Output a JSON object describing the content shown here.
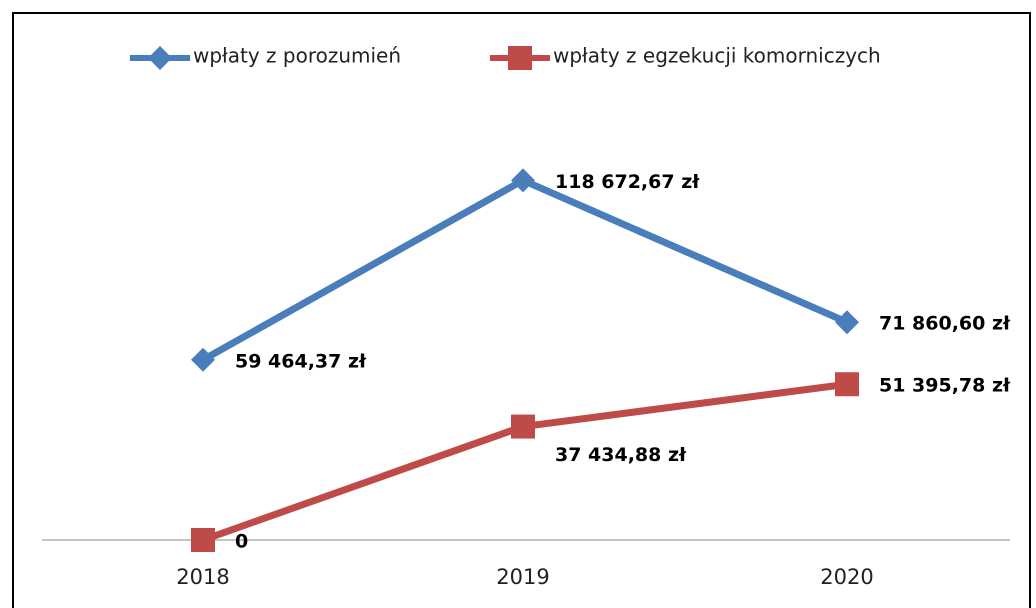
{
  "chart_data": {
    "type": "line",
    "categories": [
      "2018",
      "2019",
      "2020"
    ],
    "series": [
      {
        "name": "wpłaty z porozumień",
        "color": "#4a7ebb",
        "marker": "diamond",
        "values": [
          59464.37,
          118672.67,
          71860.6
        ],
        "value_labels": [
          "59 464,37 zł",
          "118 672,67 zł",
          "71 860,60 zł"
        ]
      },
      {
        "name": "wpłaty z egzekucji komorniczych",
        "color": "#be4b48",
        "marker": "square",
        "values": [
          0,
          37434.88,
          51395.78
        ],
        "value_labels": [
          "0",
          "37 434,88 zł",
          "51 395,78 zł"
        ]
      }
    ],
    "ylim": [
      0,
      130000
    ],
    "legend": "top"
  }
}
